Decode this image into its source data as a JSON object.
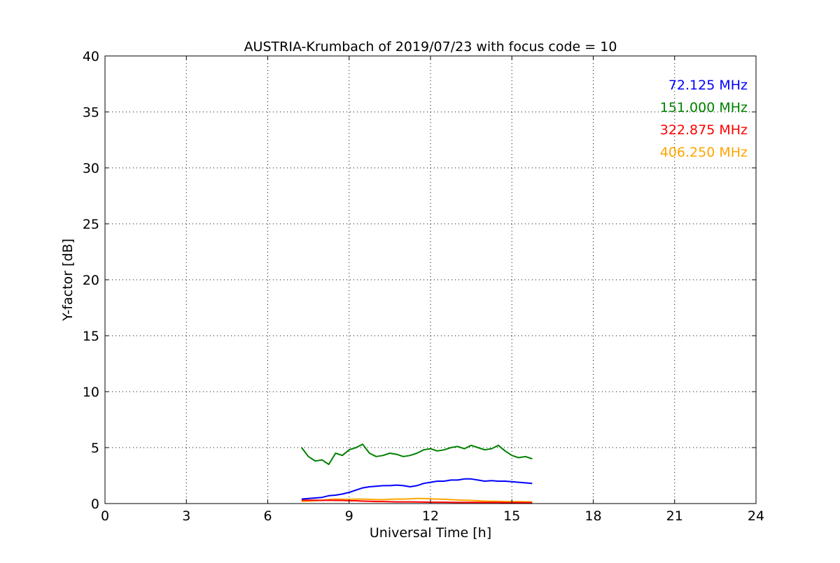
{
  "chart_data": {
    "type": "line",
    "title": "AUSTRIA-Krumbach of 2019/07/23 with focus code = 10",
    "xlabel": "Universal Time [h]",
    "ylabel": "Y-factor [dB]",
    "xlim": [
      0,
      24
    ],
    "ylim": [
      0,
      40
    ],
    "xticks": [
      0,
      3,
      6,
      9,
      12,
      15,
      18,
      21,
      24
    ],
    "yticks": [
      0,
      5,
      10,
      15,
      20,
      25,
      30,
      35,
      40
    ],
    "grid": true,
    "legend_position": "top-right",
    "series": [
      {
        "name": "72.125 MHz",
        "color": "#0000ff",
        "x": [
          7.25,
          7.5,
          7.75,
          8.0,
          8.25,
          8.5,
          8.75,
          9.0,
          9.25,
          9.5,
          9.75,
          10.0,
          10.25,
          10.5,
          10.75,
          11.0,
          11.25,
          11.5,
          11.75,
          12.0,
          12.25,
          12.5,
          12.75,
          13.0,
          13.25,
          13.5,
          13.75,
          14.0,
          14.25,
          14.5,
          14.75,
          15.0,
          15.25,
          15.5,
          15.75
        ],
        "y": [
          0.4,
          0.45,
          0.5,
          0.55,
          0.7,
          0.75,
          0.85,
          1.0,
          1.2,
          1.4,
          1.5,
          1.55,
          1.6,
          1.6,
          1.65,
          1.6,
          1.5,
          1.6,
          1.8,
          1.9,
          2.0,
          2.0,
          2.1,
          2.1,
          2.2,
          2.2,
          2.1,
          2.0,
          2.05,
          2.0,
          2.0,
          1.95,
          1.9,
          1.85,
          1.8
        ]
      },
      {
        "name": "151.000 MHz",
        "color": "#008000",
        "x": [
          7.25,
          7.5,
          7.75,
          8.0,
          8.25,
          8.5,
          8.75,
          9.0,
          9.25,
          9.5,
          9.75,
          10.0,
          10.25,
          10.5,
          10.75,
          11.0,
          11.25,
          11.5,
          11.75,
          12.0,
          12.25,
          12.5,
          12.75,
          13.0,
          13.25,
          13.5,
          13.75,
          14.0,
          14.25,
          14.5,
          14.75,
          15.0,
          15.25,
          15.5,
          15.75
        ],
        "y": [
          5.0,
          4.2,
          3.8,
          3.9,
          3.5,
          4.5,
          4.3,
          4.8,
          5.0,
          5.3,
          4.5,
          4.2,
          4.3,
          4.5,
          4.4,
          4.2,
          4.3,
          4.5,
          4.8,
          4.9,
          4.7,
          4.8,
          5.0,
          5.1,
          4.9,
          5.2,
          5.0,
          4.8,
          4.9,
          5.2,
          4.7,
          4.3,
          4.1,
          4.2,
          4.0
        ]
      },
      {
        "name": "322.875 MHz",
        "color": "#ff0000",
        "x": [
          7.25,
          7.5,
          7.75,
          8.0,
          8.25,
          8.5,
          8.75,
          9.0,
          9.25,
          9.5,
          9.75,
          10.0,
          10.25,
          10.5,
          10.75,
          11.0,
          11.25,
          11.5,
          11.75,
          12.0,
          12.25,
          12.5,
          12.75,
          13.0,
          13.25,
          13.5,
          13.75,
          14.0,
          14.25,
          14.5,
          14.75,
          15.0,
          15.25,
          15.5,
          15.75
        ],
        "y": [
          0.3,
          0.3,
          0.3,
          0.28,
          0.3,
          0.28,
          0.28,
          0.25,
          0.25,
          0.22,
          0.2,
          0.18,
          0.18,
          0.16,
          0.15,
          0.15,
          0.15,
          0.14,
          0.13,
          0.12,
          0.12,
          0.12,
          0.11,
          0.1,
          0.1,
          0.1,
          0.1,
          0.1,
          0.1,
          0.1,
          0.09,
          0.09,
          0.09,
          0.08,
          0.08
        ]
      },
      {
        "name": "406.250 MHz",
        "color": "#ffa500",
        "x": [
          7.25,
          7.5,
          7.75,
          8.0,
          8.25,
          8.5,
          8.75,
          9.0,
          9.25,
          9.5,
          9.75,
          10.0,
          10.25,
          10.5,
          10.75,
          11.0,
          11.25,
          11.5,
          11.75,
          12.0,
          12.25,
          12.5,
          12.75,
          13.0,
          13.25,
          13.5,
          13.75,
          14.0,
          14.25,
          14.5,
          14.75,
          15.0,
          15.25,
          15.5,
          15.75
        ],
        "y": [
          0.2,
          0.22,
          0.25,
          0.3,
          0.35,
          0.4,
          0.38,
          0.38,
          0.4,
          0.4,
          0.38,
          0.35,
          0.35,
          0.38,
          0.4,
          0.4,
          0.42,
          0.45,
          0.45,
          0.42,
          0.4,
          0.38,
          0.35,
          0.32,
          0.3,
          0.28,
          0.25,
          0.22,
          0.2,
          0.2,
          0.18,
          0.18,
          0.17,
          0.16,
          0.15
        ]
      }
    ]
  }
}
